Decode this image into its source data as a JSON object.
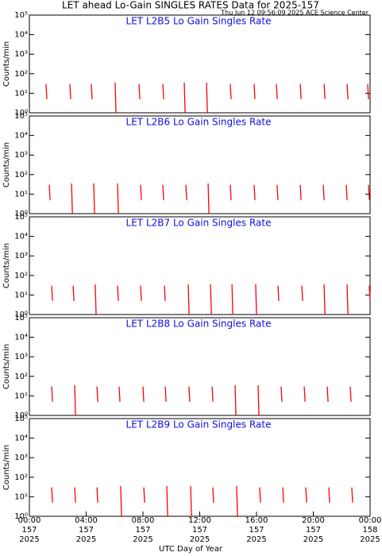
{
  "title": "LET ahead Lo-Gain SINGLES RATES Data for 2025-157",
  "subtitle": "Thu Jun 12 09:56:09 2025 ACE Science Center",
  "x_label": "UTC Day of Year",
  "chart_data": [
    {
      "type": "line",
      "title": "LET L2B5 Lo Gain Singles Rate",
      "y_label": "Counts/min",
      "log_y": true,
      "color": "#ff0000",
      "xlim": [
        0,
        24
      ],
      "ylim": [
        1,
        100000
      ],
      "yticks": [
        {
          "value": 1,
          "label": "10⁰"
        },
        {
          "value": 10,
          "label": "10¹"
        },
        {
          "value": 100,
          "label": "10²"
        },
        {
          "value": 1000,
          "label": "10³"
        },
        {
          "value": 10000,
          "label": "10⁴"
        },
        {
          "value": 100000,
          "label": "10⁵"
        }
      ],
      "x": [
        1.17,
        1.23,
        1.23,
        2.85,
        2.91,
        2.91,
        4.36,
        4.42,
        4.42,
        6.04,
        6.1,
        6.1,
        7.72,
        7.78,
        7.78,
        9.4,
        9.46,
        9.46,
        10.91,
        10.97,
        10.97,
        12.48,
        12.54,
        12.54,
        14.15,
        14.21,
        14.21,
        15.83,
        15.89,
        15.89,
        17.4,
        17.46,
        17.46,
        19.08,
        19.14,
        19.14,
        20.76,
        20.82,
        20.82,
        22.38,
        22.44,
        22.44,
        23.83,
        23.89,
        23.89
      ],
      "values": [
        30,
        5,
        null,
        30,
        5,
        null,
        30,
        5,
        null,
        35,
        1,
        null,
        30,
        5,
        null,
        30,
        5,
        null,
        35,
        1,
        null,
        35,
        1,
        null,
        30,
        5,
        null,
        30,
        5,
        null,
        30,
        5,
        null,
        30,
        5,
        null,
        30,
        5,
        null,
        30,
        5,
        null,
        30,
        5,
        null
      ]
    },
    {
      "type": "line",
      "title": "LET L2B6 Lo Gain Singles Rate",
      "y_label": "Counts/min",
      "log_y": true,
      "color": "#ff0000",
      "xlim": [
        0,
        24
      ],
      "ylim": [
        1,
        100000
      ],
      "yticks": [
        {
          "value": 1,
          "label": "10⁰"
        },
        {
          "value": 10,
          "label": "10¹"
        },
        {
          "value": 100,
          "label": "10²"
        },
        {
          "value": 1000,
          "label": "10³"
        },
        {
          "value": 10000,
          "label": "10⁴"
        },
        {
          "value": 100000,
          "label": "10⁵"
        }
      ],
      "x": [
        1.4,
        1.46,
        1.46,
        2.97,
        3.03,
        3.03,
        4.53,
        4.59,
        4.59,
        6.21,
        6.27,
        6.27,
        7.83,
        7.89,
        7.89,
        9.4,
        9.46,
        9.46,
        11.02,
        11.08,
        11.08,
        12.59,
        12.65,
        12.65,
        14.15,
        14.21,
        14.21,
        15.83,
        15.89,
        15.89,
        17.45,
        17.51,
        17.51,
        19.08,
        19.14,
        19.14,
        20.7,
        20.76,
        20.76,
        22.32,
        22.38,
        22.38,
        23.89,
        23.95,
        23.95
      ],
      "values": [
        30,
        5,
        null,
        35,
        1,
        null,
        35,
        1,
        null,
        35,
        1,
        null,
        30,
        5,
        null,
        30,
        5,
        null,
        30,
        5,
        null,
        35,
        1,
        null,
        30,
        5,
        null,
        30,
        5,
        null,
        30,
        5,
        null,
        30,
        5,
        null,
        30,
        5,
        null,
        30,
        5,
        null,
        30,
        5,
        null
      ]
    },
    {
      "type": "line",
      "title": "LET L2B7 Lo Gain Singles Rate",
      "y_label": "Counts/min",
      "log_y": true,
      "color": "#ff0000",
      "xlim": [
        0,
        24
      ],
      "ylim": [
        1,
        100000
      ],
      "yticks": [
        {
          "value": 1,
          "label": "10⁰"
        },
        {
          "value": 10,
          "label": "10¹"
        },
        {
          "value": 100,
          "label": "10²"
        },
        {
          "value": 1000,
          "label": "10³"
        },
        {
          "value": 10000,
          "label": "10⁴"
        },
        {
          "value": 100000,
          "label": "10⁵"
        }
      ],
      "x": [
        1.57,
        1.63,
        1.63,
        3.08,
        3.14,
        3.14,
        4.64,
        4.7,
        4.7,
        6.21,
        6.27,
        6.27,
        7.83,
        7.89,
        7.89,
        9.51,
        9.57,
        9.57,
        11.19,
        11.25,
        11.25,
        12.76,
        12.82,
        12.82,
        14.27,
        14.33,
        14.33,
        15.94,
        16.0,
        16.0,
        17.51,
        17.57,
        17.57,
        19.19,
        19.25,
        19.25,
        20.76,
        20.82,
        20.82,
        22.38,
        22.44,
        22.44,
        23.94,
        24.0,
        24.0
      ],
      "values": [
        30,
        5,
        null,
        30,
        5,
        null,
        35,
        1,
        null,
        30,
        5,
        null,
        30,
        5,
        null,
        30,
        5,
        null,
        35,
        1,
        null,
        35,
        1,
        null,
        35,
        1,
        null,
        35,
        1,
        null,
        30,
        5,
        null,
        30,
        5,
        null,
        35,
        1,
        null,
        35,
        1,
        null,
        30,
        5,
        null
      ]
    },
    {
      "type": "line",
      "title": "LET L2B8 Lo Gain Singles Rate",
      "y_label": "Counts/min",
      "log_y": true,
      "color": "#ff0000",
      "xlim": [
        0,
        24
      ],
      "ylim": [
        1,
        100000
      ],
      "yticks": [
        {
          "value": 1,
          "label": "10⁰"
        },
        {
          "value": 10,
          "label": "10¹"
        },
        {
          "value": 100,
          "label": "10²"
        },
        {
          "value": 1000,
          "label": "10³"
        },
        {
          "value": 10000,
          "label": "10⁴"
        },
        {
          "value": 100000,
          "label": "10⁵"
        }
      ],
      "x": [
        1.57,
        1.63,
        1.63,
        3.19,
        3.25,
        3.25,
        4.76,
        4.82,
        4.82,
        6.32,
        6.38,
        6.38,
        8.0,
        8.06,
        8.06,
        9.57,
        9.63,
        9.63,
        11.24,
        11.3,
        11.3,
        12.87,
        12.93,
        12.93,
        14.49,
        14.55,
        14.55,
        16.11,
        16.17,
        16.17,
        17.73,
        17.79,
        17.79,
        19.36,
        19.42,
        19.42,
        20.98,
        21.04,
        21.04,
        22.6,
        22.66,
        22.66
      ],
      "values": [
        30,
        5,
        null,
        35,
        1,
        null,
        30,
        5,
        null,
        30,
        5,
        null,
        30,
        5,
        null,
        30,
        5,
        null,
        30,
        5,
        null,
        30,
        5,
        null,
        35,
        1,
        null,
        35,
        1,
        null,
        30,
        5,
        null,
        30,
        5,
        null,
        30,
        5,
        null,
        30,
        5,
        null
      ]
    },
    {
      "type": "line",
      "title": "LET L2B9 Lo Gain Singles Rate",
      "y_label": "Counts/min",
      "log_y": true,
      "color": "#ff0000",
      "xlim": [
        0,
        24
      ],
      "ylim": [
        1,
        100000
      ],
      "yticks": [
        {
          "value": 1,
          "label": "10⁰"
        },
        {
          "value": 10,
          "label": "10¹"
        },
        {
          "value": 100,
          "label": "10²"
        },
        {
          "value": 1000,
          "label": "10³"
        },
        {
          "value": 10000,
          "label": "10⁴"
        },
        {
          "value": 100000,
          "label": "10⁵"
        }
      ],
      "x": [
        1.57,
        1.63,
        1.63,
        3.19,
        3.25,
        3.25,
        4.76,
        4.82,
        4.82,
        6.43,
        6.49,
        6.49,
        8.06,
        8.12,
        8.12,
        9.68,
        9.74,
        9.74,
        11.36,
        11.42,
        11.42,
        12.92,
        12.98,
        12.98,
        14.6,
        14.66,
        14.66,
        16.22,
        16.28,
        16.28,
        17.85,
        17.91,
        17.91,
        19.47,
        19.53,
        19.53,
        21.09,
        21.15,
        21.15,
        22.71,
        22.77,
        22.77
      ],
      "values": [
        30,
        5,
        null,
        30,
        5,
        null,
        30,
        5,
        null,
        35,
        1,
        null,
        30,
        5,
        null,
        35,
        1,
        null,
        35,
        1,
        null,
        30,
        5,
        null,
        35,
        1,
        null,
        30,
        5,
        null,
        30,
        5,
        null,
        30,
        5,
        null,
        30,
        5,
        null,
        30,
        5,
        null
      ],
      "xticks": [
        {
          "value": 0,
          "label": [
            "00:00",
            "157",
            "2025"
          ]
        },
        {
          "value": 4,
          "label": [
            "04:00",
            "157",
            "2025"
          ]
        },
        {
          "value": 8,
          "label": [
            "08:00",
            "157",
            "2025"
          ]
        },
        {
          "value": 12,
          "label": [
            "12:00",
            "157",
            "2025"
          ]
        },
        {
          "value": 16,
          "label": [
            "16:00",
            "157",
            "2025"
          ]
        },
        {
          "value": 20,
          "label": [
            "20:00",
            "157",
            "2025"
          ]
        },
        {
          "value": 24,
          "label": [
            "00:00",
            "158",
            "2025"
          ]
        }
      ]
    }
  ]
}
